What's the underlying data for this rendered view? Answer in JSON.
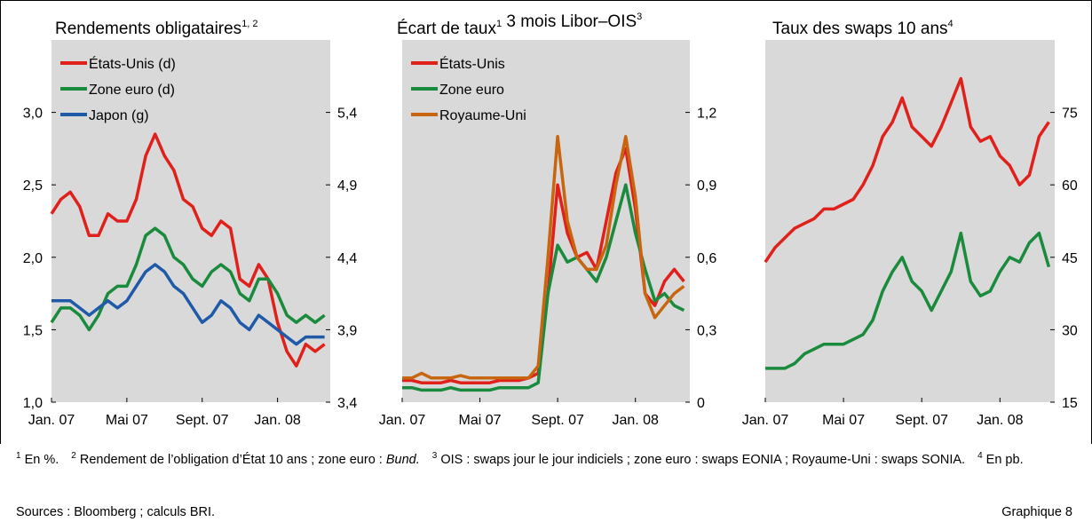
{
  "chart_data": [
    {
      "type": "line",
      "title": [
        {
          "text": "Rendements obligataires",
          "sup": "1, 2"
        }
      ],
      "x": [
        0,
        0.5,
        1,
        1.5,
        2,
        2.5,
        3,
        3.5,
        4,
        4.5,
        5,
        5.5,
        6,
        6.5,
        7,
        7.5,
        8,
        8.5,
        9,
        9.5,
        10,
        10.5,
        11,
        11.5,
        12,
        12.5,
        13,
        13.5,
        14,
        14.5
      ],
      "xlim": [
        0,
        14.8
      ],
      "xticks": [
        {
          "value": 0,
          "label": "Jan. 07"
        },
        {
          "value": 4,
          "label": "Mai 07"
        },
        {
          "value": 8,
          "label": "Sept. 07"
        },
        {
          "value": 12,
          "label": "Jan. 08"
        }
      ],
      "yaxis": "left",
      "ylim": [
        1.0,
        3.5
      ],
      "yticks": [
        {
          "value": 1.0,
          "label": "1,0"
        },
        {
          "value": 1.5,
          "label": "1,5"
        },
        {
          "value": 2.0,
          "label": "2,0"
        },
        {
          "value": 2.5,
          "label": "2,5"
        },
        {
          "value": 3.0,
          "label": "3,0"
        }
      ],
      "y2lim": [
        3.4,
        5.9
      ],
      "y2ticks": [
        {
          "value": 3.4,
          "label": "3,4"
        },
        {
          "value": 3.9,
          "label": "3,9"
        },
        {
          "value": 4.4,
          "label": "4,4"
        },
        {
          "value": 4.9,
          "label": "4,9"
        },
        {
          "value": 5.4,
          "label": "5,4"
        }
      ],
      "legend": "top-left",
      "series": [
        {
          "name": "États-Unis (d)",
          "color": "#e0201b",
          "axis": "y2",
          "values": [
            4.7,
            4.8,
            4.85,
            4.75,
            4.55,
            4.55,
            4.7,
            4.65,
            4.65,
            4.8,
            5.1,
            5.25,
            5.1,
            5.0,
            4.8,
            4.75,
            4.6,
            4.55,
            4.65,
            4.6,
            4.25,
            4.2,
            4.35,
            4.25,
            3.95,
            3.75,
            3.65,
            3.8,
            3.75,
            3.8
          ]
        },
        {
          "name": "Zone euro (d)",
          "color": "#1a8a3c",
          "axis": "y2",
          "values": [
            3.95,
            4.05,
            4.05,
            4.0,
            3.9,
            4.0,
            4.15,
            4.2,
            4.2,
            4.35,
            4.55,
            4.6,
            4.55,
            4.4,
            4.35,
            4.25,
            4.2,
            4.3,
            4.35,
            4.3,
            4.15,
            4.1,
            4.25,
            4.25,
            4.15,
            4.0,
            3.95,
            4.0,
            3.95,
            4.0
          ]
        },
        {
          "name": "Japon (g)",
          "color": "#1f5aa8",
          "values": [
            1.7,
            1.7,
            1.7,
            1.65,
            1.6,
            1.65,
            1.7,
            1.65,
            1.7,
            1.8,
            1.9,
            1.95,
            1.9,
            1.8,
            1.75,
            1.65,
            1.55,
            1.6,
            1.7,
            1.65,
            1.55,
            1.5,
            1.6,
            1.55,
            1.5,
            1.45,
            1.4,
            1.45,
            1.45,
            1.45
          ]
        }
      ]
    },
    {
      "type": "line",
      "title": [
        {
          "text": "Écart de taux",
          "sup": "1"
        },
        {
          "text": " 3 mois Libor–OIS",
          "sup": "3"
        }
      ],
      "x": [
        0,
        0.5,
        1,
        1.5,
        2,
        2.5,
        3,
        3.5,
        4,
        4.5,
        5,
        5.5,
        6,
        6.5,
        7,
        7.5,
        8,
        8.5,
        9,
        9.5,
        10,
        10.5,
        11,
        11.5,
        12,
        12.5,
        13,
        13.5,
        14,
        14.5
      ],
      "xlim": [
        0,
        14.8
      ],
      "xticks": [
        {
          "value": 0,
          "label": "Jan. 07"
        },
        {
          "value": 4,
          "label": "Mai 07"
        },
        {
          "value": 8,
          "label": "Sept. 07"
        },
        {
          "value": 12,
          "label": "Jan. 08"
        }
      ],
      "yaxis": "right",
      "ylim": [
        0,
        1.5
      ],
      "yticks": [
        0,
        {
          "value": 0.3,
          "label": "0,3"
        },
        {
          "value": 0.6,
          "label": "0,6"
        },
        {
          "value": 0.9,
          "label": "0,9"
        },
        {
          "value": 1.2,
          "label": "1,2"
        }
      ],
      "legend": "top-left",
      "series": [
        {
          "name": "États-Unis",
          "color": "#e0201b",
          "values": [
            0.09,
            0.09,
            0.08,
            0.08,
            0.08,
            0.09,
            0.08,
            0.08,
            0.08,
            0.08,
            0.09,
            0.09,
            0.09,
            0.1,
            0.12,
            0.45,
            0.9,
            0.7,
            0.6,
            0.62,
            0.55,
            0.75,
            0.95,
            1.05,
            0.8,
            0.45,
            0.4,
            0.5,
            0.55,
            0.5
          ]
        },
        {
          "name": "Zone euro",
          "color": "#1a8a3c",
          "values": [
            0.06,
            0.06,
            0.05,
            0.05,
            0.05,
            0.06,
            0.05,
            0.05,
            0.05,
            0.05,
            0.06,
            0.06,
            0.06,
            0.06,
            0.08,
            0.45,
            0.65,
            0.58,
            0.6,
            0.55,
            0.5,
            0.6,
            0.75,
            0.9,
            0.7,
            0.55,
            0.42,
            0.45,
            0.4,
            0.38
          ]
        },
        {
          "name": "Royaume-Uni",
          "color": "#c8650f",
          "values": [
            0.1,
            0.1,
            0.12,
            0.1,
            0.1,
            0.1,
            0.11,
            0.1,
            0.1,
            0.1,
            0.1,
            0.1,
            0.1,
            0.1,
            0.15,
            0.6,
            1.1,
            0.75,
            0.6,
            0.55,
            0.55,
            0.65,
            0.9,
            1.1,
            0.85,
            0.45,
            0.35,
            0.4,
            0.45,
            0.48
          ]
        }
      ]
    },
    {
      "type": "line",
      "title": [
        {
          "text": "Taux des swaps 10 ans",
          "sup": "4"
        }
      ],
      "x": [
        0,
        0.5,
        1,
        1.5,
        2,
        2.5,
        3,
        3.5,
        4,
        4.5,
        5,
        5.5,
        6,
        6.5,
        7,
        7.5,
        8,
        8.5,
        9,
        9.5,
        10,
        10.5,
        11,
        11.5,
        12,
        12.5,
        13,
        13.5,
        14,
        14.5
      ],
      "xlim": [
        0,
        14.8
      ],
      "xticks": [
        {
          "value": 0,
          "label": "Jan. 07"
        },
        {
          "value": 4,
          "label": "Mai 07"
        },
        {
          "value": 8,
          "label": "Sept. 07"
        },
        {
          "value": 12,
          "label": "Jan. 08"
        }
      ],
      "yaxis": "right",
      "ylim": [
        15,
        90
      ],
      "yticks": [
        15,
        30,
        45,
        60,
        75
      ],
      "series": [
        {
          "color": "#e0201b",
          "values": [
            44,
            47,
            49,
            51,
            52,
            53,
            55,
            55,
            56,
            57,
            60,
            64,
            70,
            73,
            78,
            72,
            70,
            68,
            72,
            77,
            82,
            72,
            69,
            70,
            66,
            64,
            60,
            62,
            70,
            73
          ]
        },
        {
          "color": "#1a8a3c",
          "values": [
            22,
            22,
            22,
            23,
            25,
            26,
            27,
            27,
            27,
            28,
            29,
            32,
            38,
            42,
            45,
            40,
            38,
            34,
            38,
            42,
            50,
            40,
            37,
            38,
            42,
            45,
            44,
            48,
            50,
            43
          ]
        }
      ]
    }
  ],
  "footnotes": [
    {
      "mark": "1",
      "text": "En %."
    },
    {
      "mark": "2",
      "text": "Rendement de l’obligation d’État 10 ans ; zone euro : ",
      "em": "Bund."
    },
    {
      "mark": "3",
      "text": "OIS : swaps jour le jour indiciels ; zone euro : swaps EONIA ; Royaume-Uni : swaps SONIA."
    },
    {
      "mark": "4",
      "text": "En pb."
    }
  ],
  "sources": "Sources : Bloomberg ; calculs BRI.",
  "figure_label": "Graphique 8"
}
